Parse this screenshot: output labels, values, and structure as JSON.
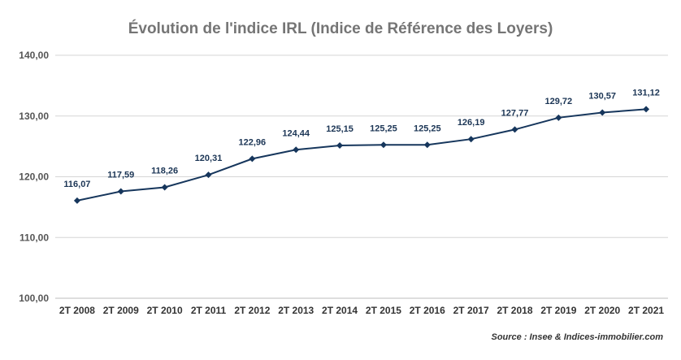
{
  "chart_data": {
    "type": "line",
    "title": "Évolution de l'indice IRL (Indice de Référence des Loyers)",
    "xlabel": "",
    "ylabel": "",
    "categories": [
      "2T 2008",
      "2T 2009",
      "2T 2010",
      "2T 2011",
      "2T 2012",
      "2T 2013",
      "2T 2014",
      "2T 2015",
      "2T 2016",
      "2T 2017",
      "2T 2018",
      "2T 2019",
      "2T 2020",
      "2T 2021"
    ],
    "values": [
      116.07,
      117.59,
      118.26,
      120.31,
      122.96,
      124.44,
      125.15,
      125.25,
      125.25,
      126.19,
      127.77,
      129.72,
      130.57,
      131.12
    ],
    "data_labels": [
      "116,07",
      "117,59",
      "118,26",
      "120,31",
      "122,96",
      "124,44",
      "125,15",
      "125,25",
      "125,25",
      "126,19",
      "127,77",
      "129,72",
      "130,57",
      "131,12"
    ],
    "ylim": [
      100,
      140
    ],
    "yticks": [
      100,
      110,
      120,
      130,
      140
    ],
    "ytick_labels": [
      "100,00",
      "110,00",
      "120,00",
      "130,00",
      "140,00"
    ],
    "grid": true,
    "legend": "none",
    "line_color": "#16365c",
    "source": "Source : Insee & Indices-immobilier.com"
  }
}
